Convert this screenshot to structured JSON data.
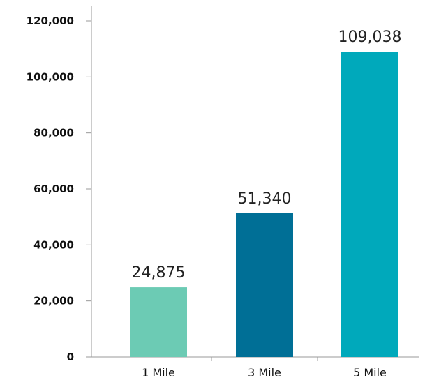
{
  "chart_data": {
    "type": "bar",
    "categories": [
      "1 Mile",
      "3 Mile",
      "5 Mile"
    ],
    "values": [
      24875,
      51340,
      109038
    ],
    "value_labels": [
      "24,875",
      "51,340",
      "109,038"
    ],
    "colors": [
      "#6ccbb4",
      "#006f96",
      "#00a9bb"
    ],
    "y_ticks": [
      0,
      20000,
      40000,
      60000,
      80000,
      100000,
      120000
    ],
    "y_tick_labels": [
      "0",
      "20,000",
      "40,000",
      "60,000",
      "80,000",
      "100,000",
      "120,000"
    ],
    "ylim": [
      0,
      120000
    ],
    "grid": false,
    "legend": "none"
  }
}
